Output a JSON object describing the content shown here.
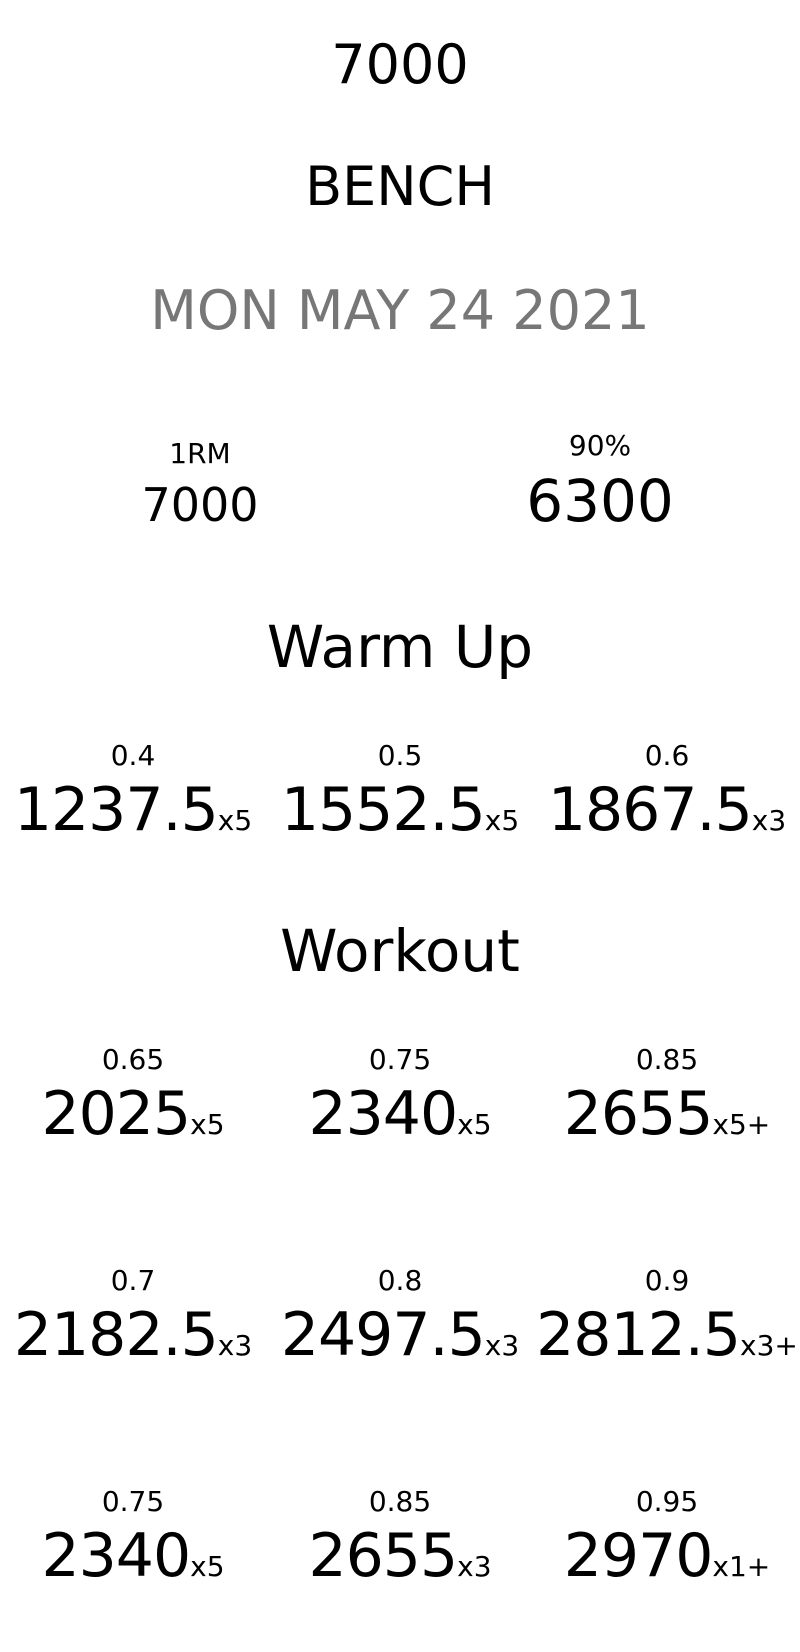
{
  "header": {
    "value": "7000",
    "lift": "BENCH",
    "date": "MON MAY 24 2021"
  },
  "stats": {
    "one_rm_label": "1RM",
    "one_rm_value": "7000",
    "percent_label": "90%",
    "percent_value": "6300"
  },
  "warmup": {
    "heading": "Warm Up",
    "sets": [
      {
        "pct": "0.4",
        "weight": "1237.5",
        "reps": "x5"
      },
      {
        "pct": "0.5",
        "weight": "1552.5",
        "reps": "x5"
      },
      {
        "pct": "0.6",
        "weight": "1867.5",
        "reps": "x3"
      }
    ]
  },
  "workout": {
    "heading": "Workout",
    "rows": [
      [
        {
          "pct": "0.65",
          "weight": "2025",
          "reps": "x5"
        },
        {
          "pct": "0.75",
          "weight": "2340",
          "reps": "x5"
        },
        {
          "pct": "0.85",
          "weight": "2655",
          "reps": "x5+"
        }
      ],
      [
        {
          "pct": "0.7",
          "weight": "2182.5",
          "reps": "x3"
        },
        {
          "pct": "0.8",
          "weight": "2497.5",
          "reps": "x3"
        },
        {
          "pct": "0.9",
          "weight": "2812.5",
          "reps": "x3+"
        }
      ],
      [
        {
          "pct": "0.75",
          "weight": "2340",
          "reps": "x5"
        },
        {
          "pct": "0.85",
          "weight": "2655",
          "reps": "x3"
        },
        {
          "pct": "0.95",
          "weight": "2970",
          "reps": "x1+"
        }
      ]
    ]
  }
}
